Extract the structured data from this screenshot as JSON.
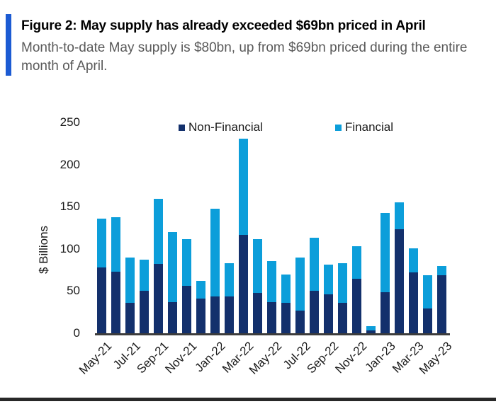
{
  "header": {
    "title": "Figure 2: May supply has already exceeded $69bn priced in April",
    "subtitle": "Month-to-date May supply is $80bn, up from $69bn priced during the entire month of April.",
    "accent_color": "#1C5BD3"
  },
  "chart_data": {
    "type": "bar",
    "stacked": true,
    "title": "",
    "xlabel": "",
    "ylabel": "$ Billions",
    "ylim": [
      0,
      250
    ],
    "yticks": [
      0,
      50,
      100,
      150,
      200,
      250
    ],
    "grid": false,
    "legend_position": "top",
    "categories": [
      "May-21",
      "Jun-21",
      "Jul-21",
      "Aug-21",
      "Sep-21",
      "Oct-21",
      "Nov-21",
      "Dec-21",
      "Jan-22",
      "Feb-22",
      "Mar-22",
      "Apr-22",
      "May-22",
      "Jun-22",
      "Jul-22",
      "Aug-22",
      "Sep-22",
      "Oct-22",
      "Nov-22",
      "Dec-22",
      "Jan-23",
      "Feb-23",
      "Mar-23",
      "Apr-23",
      "May-23"
    ],
    "x_tick_labels": [
      "May-21",
      "Jul-21",
      "Sep-21",
      "Nov-21",
      "Jan-22",
      "Mar-22",
      "May-22",
      "Jul-22",
      "Sep-22",
      "Nov-22",
      "Jan-23",
      "Mar-23",
      "May-23"
    ],
    "series": [
      {
        "name": "Non-Financial",
        "color": "#13306C",
        "values": [
          78,
          73,
          36,
          50,
          82,
          37,
          56,
          41,
          44,
          44,
          117,
          48,
          37,
          36,
          27,
          50,
          46,
          36,
          65,
          3,
          49,
          123,
          72,
          29,
          69
        ]
      },
      {
        "name": "Financial",
        "color": "#0C9EDA",
        "values": [
          58,
          65,
          54,
          37,
          77,
          83,
          56,
          21,
          104,
          39,
          114,
          64,
          49,
          34,
          63,
          63,
          35,
          47,
          38,
          5,
          94,
          32,
          29,
          40,
          11
        ]
      }
    ],
    "totals": [
      136,
      138,
      90,
      87,
      159,
      120,
      112,
      62,
      148,
      83,
      231,
      112,
      86,
      70,
      90,
      113,
      81,
      83,
      103,
      8,
      143,
      155,
      101,
      69,
      80
    ]
  },
  "colors": {
    "axis_line": "#3c3c3c",
    "bottom_rule": "#282828",
    "subtitle_text": "#595959"
  }
}
